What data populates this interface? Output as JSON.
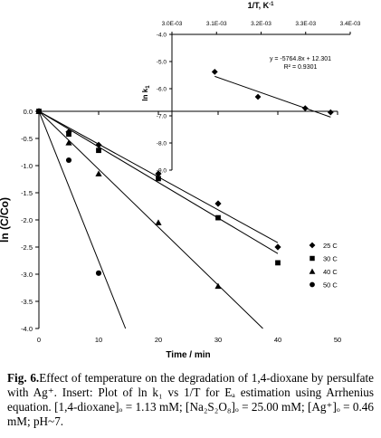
{
  "chart_data": [
    {
      "type": "scatter",
      "title": "",
      "xlabel": "Time / min",
      "ylabel": "ln (C/Co)",
      "xlim": [
        0,
        50
      ],
      "ylim": [
        -4.0,
        0.0
      ],
      "xticks": [
        0,
        10,
        20,
        30,
        40,
        50
      ],
      "yticks": [
        0.0,
        -0.5,
        -1.0,
        -1.5,
        -2.0,
        -2.5,
        -3.0,
        -3.5,
        -4.0
      ],
      "x_tick_labels": [
        "0",
        "10",
        "20",
        "30",
        "40",
        "50"
      ],
      "y_tick_labels": [
        "0.0",
        "-0.5",
        "-1.0",
        "-1.5",
        "-2.0",
        "-2.5",
        "-3.0",
        "-3.5",
        "-4.0"
      ],
      "grid": false,
      "legend_position": "bottom-right",
      "series": [
        {
          "name": "25 C",
          "marker": "diamond",
          "x": [
            0,
            5,
            10,
            20,
            30,
            40
          ],
          "y": [
            0.0,
            -0.38,
            -0.62,
            -1.15,
            -1.7,
            -2.5
          ],
          "fit_end": [
            40,
            -2.42
          ]
        },
        {
          "name": "30 C",
          "marker": "square",
          "x": [
            0,
            5,
            10,
            20,
            30,
            40
          ],
          "y": [
            0.0,
            -0.42,
            -0.72,
            -1.24,
            -1.96,
            -2.79
          ],
          "fit_end": [
            40,
            -2.62
          ]
        },
        {
          "name": "40 C",
          "marker": "triangle",
          "x": [
            0,
            5,
            10,
            20,
            30
          ],
          "y": [
            0.0,
            -0.58,
            -1.15,
            -2.05,
            -3.22
          ],
          "fit_end": [
            37.5,
            -4.0
          ]
        },
        {
          "name": "50 C",
          "marker": "circle",
          "x": [
            0,
            5,
            10
          ],
          "y": [
            0.0,
            -0.9,
            -2.98
          ],
          "fit_end": [
            14.5,
            -4.0
          ]
        }
      ]
    },
    {
      "type": "scatter",
      "title": "",
      "xlabel": "1/T, K",
      "xlabel_sup": "-1",
      "ylabel": "ln k",
      "ylabel_sub": "1",
      "xlim": [
        0.003,
        0.0034
      ],
      "ylim": [
        -9.0,
        -4.0
      ],
      "xticks": [
        0.003,
        0.0031,
        0.0032,
        0.0033,
        0.0034
      ],
      "x_tick_labels": [
        "3.0E-03",
        "3.1E-03",
        "3.2E-03",
        "3.3E-03",
        "3.4E-03"
      ],
      "yticks": [
        -4.0,
        -5.0,
        -6.0,
        -7.0,
        -8.0,
        -9.0
      ],
      "y_tick_labels": [
        "-4.0",
        "-5.0",
        "-6.0",
        "-7.0",
        "-8.0",
        "-9.0"
      ],
      "x_axis_position": "top",
      "series": [
        {
          "marker": "diamond",
          "x": [
            0.003096,
            0.003193,
            0.003299,
            0.003356
          ],
          "y": [
            -5.38,
            -6.3,
            -6.72,
            -6.87
          ]
        }
      ],
      "fit": {
        "slope": -5764.8,
        "intercept": 12.301,
        "equation": "y = -5764.8x + 12.301",
        "r2": "R² = 0.9301"
      }
    }
  ],
  "caption": {
    "label": "Fig. 6.",
    "text": "Effect of temperature on the degradation of 1,4-dioxane by persulfate with Ag⁺. Insert: Plot of ln k₁ vs 1/T for Eₐ estimation using Arrhenius equation. [1,4-dioxane]ₒ = 1.13 mM; [Na₂S₂O₈]ₒ = 25.00 mM; [Ag⁺]ₒ = 0.46 mM; pH~7."
  }
}
